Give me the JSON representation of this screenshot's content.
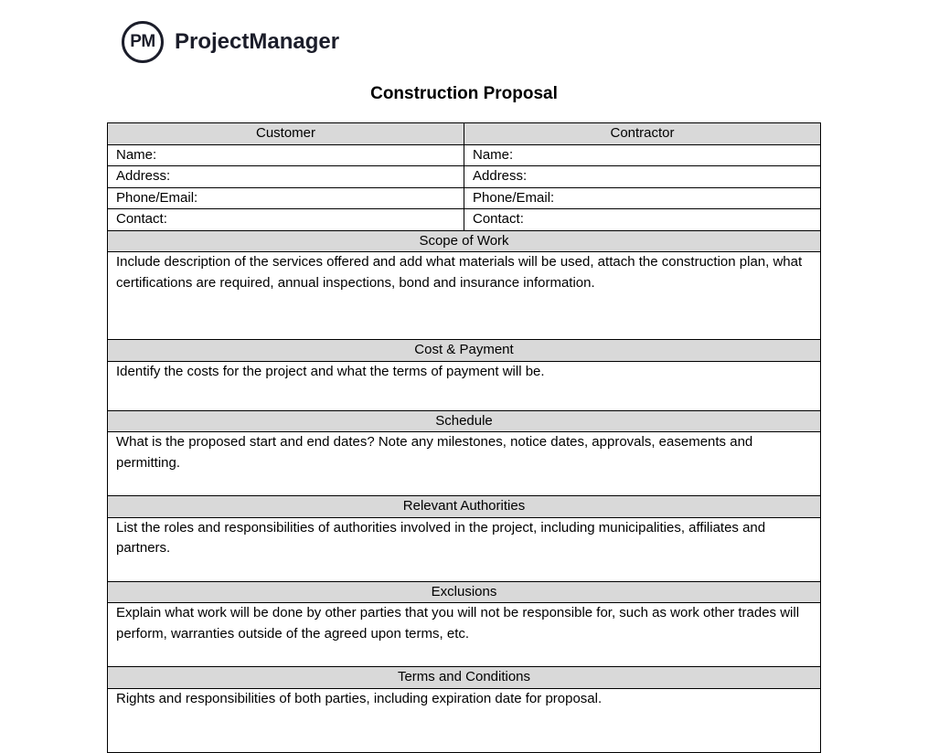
{
  "logo": {
    "mark": "PM",
    "name": "ProjectManager"
  },
  "title": "Construction Proposal",
  "parties": {
    "customer": {
      "heading": "Customer",
      "fields": [
        "Name:",
        "Address:",
        "Phone/Email:",
        "Contact:"
      ]
    },
    "contractor": {
      "heading": "Contractor",
      "fields": [
        "Name:",
        "Address:",
        "Phone/Email:",
        "Contact:"
      ]
    }
  },
  "sections": [
    {
      "heading": "Scope of Work",
      "text": "Include description of the services offered and add what materials will be used, attach the construction plan, what certifications are required, annual inspections, bond and insurance information."
    },
    {
      "heading": "Cost & Payment",
      "text": "Identify the costs for the project and what the terms of payment will be."
    },
    {
      "heading": "Schedule",
      "text": "What is the proposed start and end dates? Note any milestones, notice dates, approvals, easements and permitting."
    },
    {
      "heading": "Relevant Authorities",
      "text": "List the roles and responsibilities of authorities involved in the project, including municipalities, affiliates and partners."
    },
    {
      "heading": "Exclusions",
      "text": "Explain what work will be done by other parties that you will not be responsible for, such as work other trades will perform, warranties outside of the agreed upon terms, etc."
    },
    {
      "heading": "Terms and Conditions",
      "text": "Rights and responsibilities of both parties, including expiration date for proposal."
    }
  ]
}
